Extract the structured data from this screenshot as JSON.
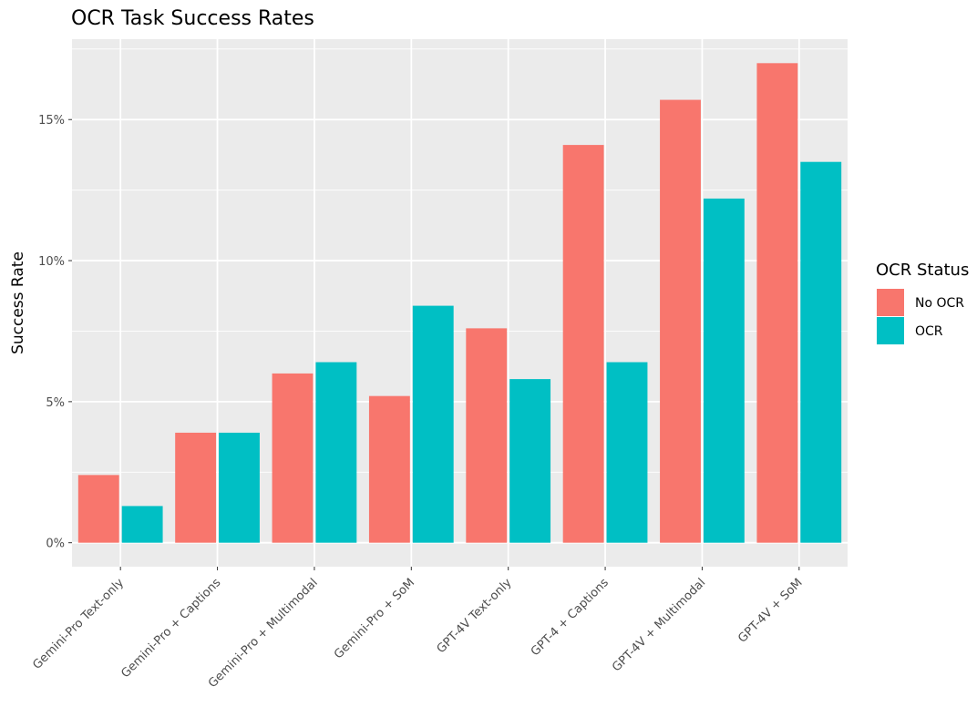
{
  "chart_data": {
    "type": "bar",
    "title": "OCR Task Success Rates",
    "xlabel": "",
    "ylabel": "Success Rate",
    "categories": [
      "Gemini-Pro Text-only",
      "Gemini-Pro + Captions",
      "Gemini-Pro + Multimodal",
      "Gemini-Pro + SoM",
      "GPT-4V Text-only",
      "GPT-4 + Captions",
      "GPT-4V + Multimodal",
      "GPT-4V + SoM"
    ],
    "series": [
      {
        "name": "No OCR",
        "color": "#F8766D",
        "values": [
          2.4,
          3.9,
          6.0,
          5.2,
          7.6,
          14.1,
          15.7,
          17.0
        ]
      },
      {
        "name": "OCR",
        "color": "#00BFC4",
        "values": [
          1.3,
          3.9,
          6.4,
          8.4,
          5.8,
          6.4,
          12.2,
          13.5
        ]
      }
    ],
    "ylim": [
      -0.85,
      17.85
    ],
    "yticks": [
      0,
      5,
      10,
      15
    ],
    "ytick_labels": [
      "0%",
      "5%",
      "10%",
      "15%"
    ],
    "grid": true,
    "panel_background": "#EBEBEB",
    "legend": {
      "title": "OCR Status",
      "placement": "right",
      "entries": [
        "No OCR",
        "OCR"
      ]
    }
  }
}
